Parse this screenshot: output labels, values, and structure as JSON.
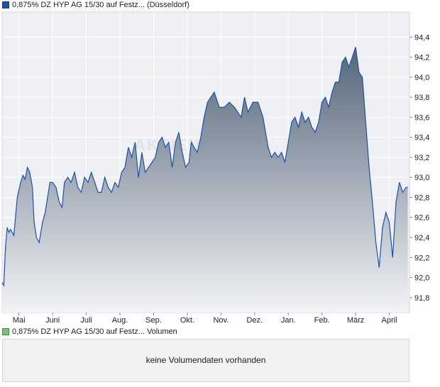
{
  "legend": {
    "price_label": "0,875% DZ HYP AG 15/30 auf Festz... (Düsseldorf)",
    "volume_label": "0,875% DZ HYP AG 15/30 auf Festz... Volumen"
  },
  "volume_panel": {
    "message": "keine Volumendaten vorhanden"
  },
  "watermark": "AKTIEN",
  "colors": {
    "line": "#1f4fa6",
    "fill_top": "#55667a",
    "fill_bottom": "#f2f3f6",
    "grid": "#ffffff",
    "plot_bg": "#eef0f3"
  },
  "chart_data": {
    "type": "area",
    "grid": true,
    "ylim": [
      91.65,
      94.65
    ],
    "y_ticks": [
      "91,8",
      "92,0",
      "92,2",
      "92,4",
      "92,6",
      "92,8",
      "93,0",
      "93,2",
      "93,4",
      "93,6",
      "93,8",
      "94,0",
      "94,2",
      "94,4"
    ],
    "y_tick_values": [
      91.8,
      92.0,
      92.2,
      92.4,
      92.6,
      92.8,
      93.0,
      93.2,
      93.4,
      93.6,
      93.8,
      94.0,
      94.2,
      94.4
    ],
    "x_ticks": [
      "Mai",
      "Juni",
      "Juli",
      "Aug.",
      "Sep.",
      "Okt.",
      "Nov.",
      "Dez.",
      "Jan.",
      "Feb.",
      "März",
      "April"
    ],
    "x_tick_positions": [
      0.5,
      1.5,
      2.5,
      3.5,
      4.5,
      5.5,
      6.5,
      7.5,
      8.5,
      9.5,
      10.5,
      11.5
    ],
    "x_range": [
      0,
      12.1
    ],
    "series": [
      {
        "x": [
          0.0,
          0.05,
          0.1,
          0.15,
          0.2,
          0.25,
          0.35,
          0.45,
          0.55,
          0.62,
          0.68,
          0.75,
          0.82,
          0.9,
          0.95,
          1.02,
          1.1,
          1.2,
          1.28,
          1.35,
          1.42,
          1.5,
          1.6,
          1.7,
          1.78,
          1.85,
          1.95,
          2.05,
          2.15,
          2.25,
          2.35,
          2.45,
          2.55,
          2.65,
          2.75,
          2.85,
          2.95,
          3.05,
          3.15,
          3.25,
          3.35,
          3.45,
          3.55,
          3.65,
          3.75,
          3.85,
          3.95,
          4.05,
          4.15,
          4.25,
          4.35,
          4.45,
          4.55,
          4.65,
          4.75,
          4.85,
          4.95,
          5.05,
          5.15,
          5.25,
          5.35,
          5.45,
          5.55,
          5.62,
          5.7,
          5.8,
          5.9,
          6.0,
          6.1,
          6.2,
          6.3,
          6.45,
          6.6,
          6.75,
          6.9,
          7.0,
          7.1,
          7.2,
          7.3,
          7.45,
          7.6,
          7.75,
          7.9,
          8.0,
          8.1,
          8.2,
          8.3,
          8.4,
          8.5,
          8.6,
          8.7,
          8.8,
          8.9,
          9.0,
          9.1,
          9.2,
          9.3,
          9.4,
          9.5,
          9.6,
          9.7,
          9.8,
          9.9,
          10.0,
          10.1,
          10.2,
          10.3,
          10.4,
          10.5,
          10.6,
          10.7,
          10.8,
          10.9,
          11.0,
          11.1,
          11.2,
          11.3,
          11.4,
          11.5,
          11.6,
          11.7,
          11.8,
          11.9,
          12.0,
          12.05
        ],
        "values": [
          91.95,
          91.92,
          92.3,
          92.5,
          92.45,
          92.48,
          92.42,
          92.8,
          92.95,
          93.02,
          92.98,
          93.1,
          93.05,
          92.9,
          92.55,
          92.4,
          92.35,
          92.55,
          92.65,
          92.8,
          92.95,
          92.95,
          92.9,
          92.75,
          92.7,
          92.95,
          93.0,
          92.95,
          93.05,
          92.9,
          92.85,
          93.0,
          92.95,
          93.05,
          92.95,
          92.85,
          92.85,
          93.0,
          92.9,
          92.85,
          92.95,
          92.9,
          93.05,
          93.1,
          93.3,
          93.2,
          93.35,
          93.0,
          93.25,
          93.05,
          93.1,
          93.15,
          93.2,
          93.35,
          93.4,
          93.3,
          93.35,
          93.1,
          93.35,
          93.45,
          93.25,
          93.1,
          93.15,
          93.35,
          93.3,
          93.25,
          93.4,
          93.6,
          93.75,
          93.8,
          93.85,
          93.7,
          93.7,
          93.75,
          93.7,
          93.65,
          93.6,
          93.8,
          93.65,
          93.75,
          93.75,
          93.6,
          93.3,
          93.2,
          93.25,
          93.2,
          93.25,
          93.15,
          93.35,
          93.55,
          93.6,
          93.5,
          93.65,
          93.55,
          93.6,
          93.5,
          93.45,
          93.55,
          93.75,
          93.8,
          93.7,
          93.85,
          93.95,
          93.95,
          94.15,
          94.2,
          94.1,
          94.2,
          94.3,
          94.05,
          94.0,
          93.55,
          93.1,
          92.75,
          92.35,
          92.1,
          92.5,
          92.65,
          92.55,
          92.2,
          92.75,
          92.95,
          92.85,
          92.9,
          92.9
        ]
      }
    ]
  }
}
